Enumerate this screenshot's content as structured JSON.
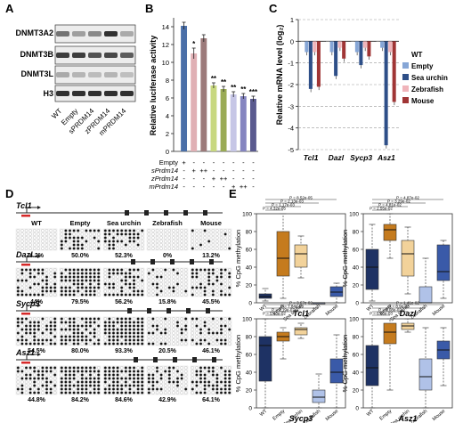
{
  "panels": {
    "A": "A",
    "B": "B",
    "C": "C",
    "D": "D",
    "E": "E"
  },
  "panelA": {
    "rows": [
      "DNMT3A2",
      "DNMT3B",
      "DNMT3L",
      "H3"
    ],
    "lanes": [
      "WT",
      "Empty",
      "sPRDM14",
      "zPRDM14",
      "mPRDM14"
    ]
  },
  "panelB": {
    "ylabel": "Relative luciferase activity",
    "ymax": 15,
    "yticks": [
      0,
      2,
      4,
      6,
      8,
      10,
      12,
      14
    ],
    "row_labels": [
      "Empty",
      "sPrdm14",
      "zPrdm14",
      "mPrdm14"
    ],
    "signs": [
      [
        "+",
        "-",
        "-",
        "-",
        "-",
        "-",
        "-",
        "-"
      ],
      [
        "-",
        "+",
        "++",
        "-",
        "-",
        "-",
        "-",
        "-"
      ],
      [
        "-",
        "-",
        "-",
        "+",
        "++",
        "-",
        "-",
        "-"
      ],
      [
        "-",
        "-",
        "-",
        "-",
        "-",
        "+",
        "++",
        "-"
      ]
    ],
    "signs_extra": [
      "-",
      "-",
      "-",
      "-",
      "-",
      "-",
      "-",
      "++"
    ]
  },
  "panelC": {
    "ylabel": "Relative mRNA level (log₂)",
    "ymin": -5,
    "ymax": 1,
    "yticks": [
      1,
      0,
      -1,
      -2,
      -3,
      -4,
      -5
    ],
    "genes": [
      "Tcl1",
      "Dazl",
      "Sycp3",
      "Asz1"
    ],
    "legend_title": "WT",
    "legend": [
      "Empty",
      "Sea urchin",
      "Zebrafish",
      "Mouse"
    ]
  },
  "panelD": {
    "genes": [
      "Tcl1",
      "Dazl",
      "Sycp3",
      "Asz1"
    ],
    "groups": [
      "WT",
      "Empty",
      "Sea urchin",
      "Zebrafish",
      "Mouse"
    ],
    "percents": [
      [
        "4.2%",
        "50.0%",
        "52.3%",
        "0%",
        "13.2%"
      ],
      [
        "44%",
        "79.5%",
        "56.2%",
        "15.8%",
        "45.5%"
      ],
      [
        "54.5%",
        "80.0%",
        "93.3%",
        "20.5%",
        "46.1%"
      ],
      [
        "44.8%",
        "84.2%",
        "84.6%",
        "42.9%",
        "64.1%"
      ]
    ]
  },
  "panelE": {
    "ylabel": "% CpG methylation",
    "yticks": [
      0,
      20,
      40,
      60,
      80,
      100
    ],
    "groups": [
      "WT",
      "Empty",
      "Sea urchin",
      "Zebrafish",
      "Mouse"
    ],
    "genes": [
      "Tcl1",
      "Dazl",
      "Sycp3",
      "Asz1"
    ],
    "pvals": [
      [
        "P = 8.52e-05",
        "P = 2.13e-03",
        "P = 1.17e-03",
        "P = 4.32e-05"
      ],
      [
        "P = 4.87e-02",
        "P = 3.29e-02",
        "P = 4.81e-02",
        "P = 2.55e-02"
      ],
      [
        "P = 3.67e-02",
        "P = 7.84e-03",
        "P = 2.19e-07",
        "P = 5.43e-02"
      ],
      [
        "P = 1.41e-02",
        "P = 8.9e-03",
        "P = 6.08e-02",
        "P = 6.05e-03"
      ]
    ]
  },
  "chart_data": [
    {
      "type": "bar",
      "panel": "B",
      "ylabel": "Relative luciferase activity",
      "ylim": [
        0,
        15
      ],
      "categories": [
        "Empty",
        "sPrdm14 +",
        "sPrdm14 ++",
        "zPrdm14 +",
        "zPrdm14 ++",
        "mPrdm14 +",
        "mPrdm14 ++",
        "mPrdm14 +++"
      ],
      "values": [
        14.1,
        11.0,
        12.7,
        7.4,
        7.0,
        6.4,
        6.2,
        5.9
      ],
      "errors": [
        0.4,
        0.6,
        0.4,
        0.3,
        0.3,
        0.3,
        0.3,
        0.3
      ],
      "significance": [
        "",
        "*",
        "",
        "**",
        "**",
        "**",
        "**",
        "***"
      ],
      "colors": [
        "#4a6fa8",
        "#e0b0b5",
        "#9c7a7a",
        "#c8d880",
        "#9aab55",
        "#c6c6e6",
        "#8585c0",
        "#5a5a8f"
      ]
    },
    {
      "type": "bar",
      "panel": "C",
      "ylabel": "Relative mRNA level (log₂)",
      "ylim": [
        -5,
        1
      ],
      "categories": [
        "Tcl1",
        "Dazl",
        "Sycp3",
        "Asz1"
      ],
      "series": [
        {
          "name": "WT",
          "values": [
            0.0,
            0.0,
            0.0,
            0.0
          ]
        },
        {
          "name": "Empty",
          "values": [
            -0.5,
            -0.5,
            -0.5,
            -0.3
          ]
        },
        {
          "name": "Sea urchin",
          "values": [
            -2.2,
            -1.6,
            -1.1,
            -4.8
          ]
        },
        {
          "name": "Zebrafish",
          "values": [
            -0.5,
            -0.3,
            -0.3,
            -0.5
          ]
        },
        {
          "name": "Mouse",
          "values": [
            -2.1,
            -0.8,
            -0.7,
            -2.8
          ]
        }
      ],
      "colors": [
        "#b6b6b6",
        "#86a6d6",
        "#2e4f88",
        "#f0b4ba",
        "#a03535"
      ]
    }
  ],
  "boxData": [
    [
      [
        2,
        5,
        7,
        10,
        16
      ],
      [
        5,
        30,
        50,
        80,
        100
      ],
      [
        28,
        40,
        55,
        65,
        75
      ],
      [
        0,
        0,
        0,
        0,
        0
      ],
      [
        0,
        7,
        12,
        18,
        22
      ]
    ],
    [
      [
        2,
        15,
        40,
        60,
        88
      ],
      [
        50,
        70,
        82,
        88,
        100
      ],
      [
        10,
        30,
        55,
        70,
        85
      ],
      [
        0,
        0,
        0,
        18,
        50
      ],
      [
        5,
        25,
        35,
        65,
        70
      ]
    ],
    [
      [
        0,
        30,
        70,
        80,
        100
      ],
      [
        55,
        75,
        80,
        85,
        90
      ],
      [
        78,
        82,
        88,
        90,
        95
      ],
      [
        0,
        6,
        12,
        20,
        38
      ],
      [
        0,
        28,
        40,
        55,
        82
      ]
    ],
    [
      [
        0,
        25,
        45,
        70,
        100
      ],
      [
        20,
        72,
        85,
        95,
        100
      ],
      [
        85,
        88,
        92,
        95,
        100
      ],
      [
        0,
        20,
        35,
        55,
        90
      ],
      [
        25,
        55,
        65,
        75,
        90
      ]
    ]
  ],
  "boxColors": [
    "#1e3264",
    "#c57b1e",
    "#f2d29a",
    "#b0c2e8",
    "#3a5aa8"
  ],
  "boxMedColors": [
    "#111111",
    "#111111",
    "#111111",
    "#111111",
    "#111111"
  ]
}
